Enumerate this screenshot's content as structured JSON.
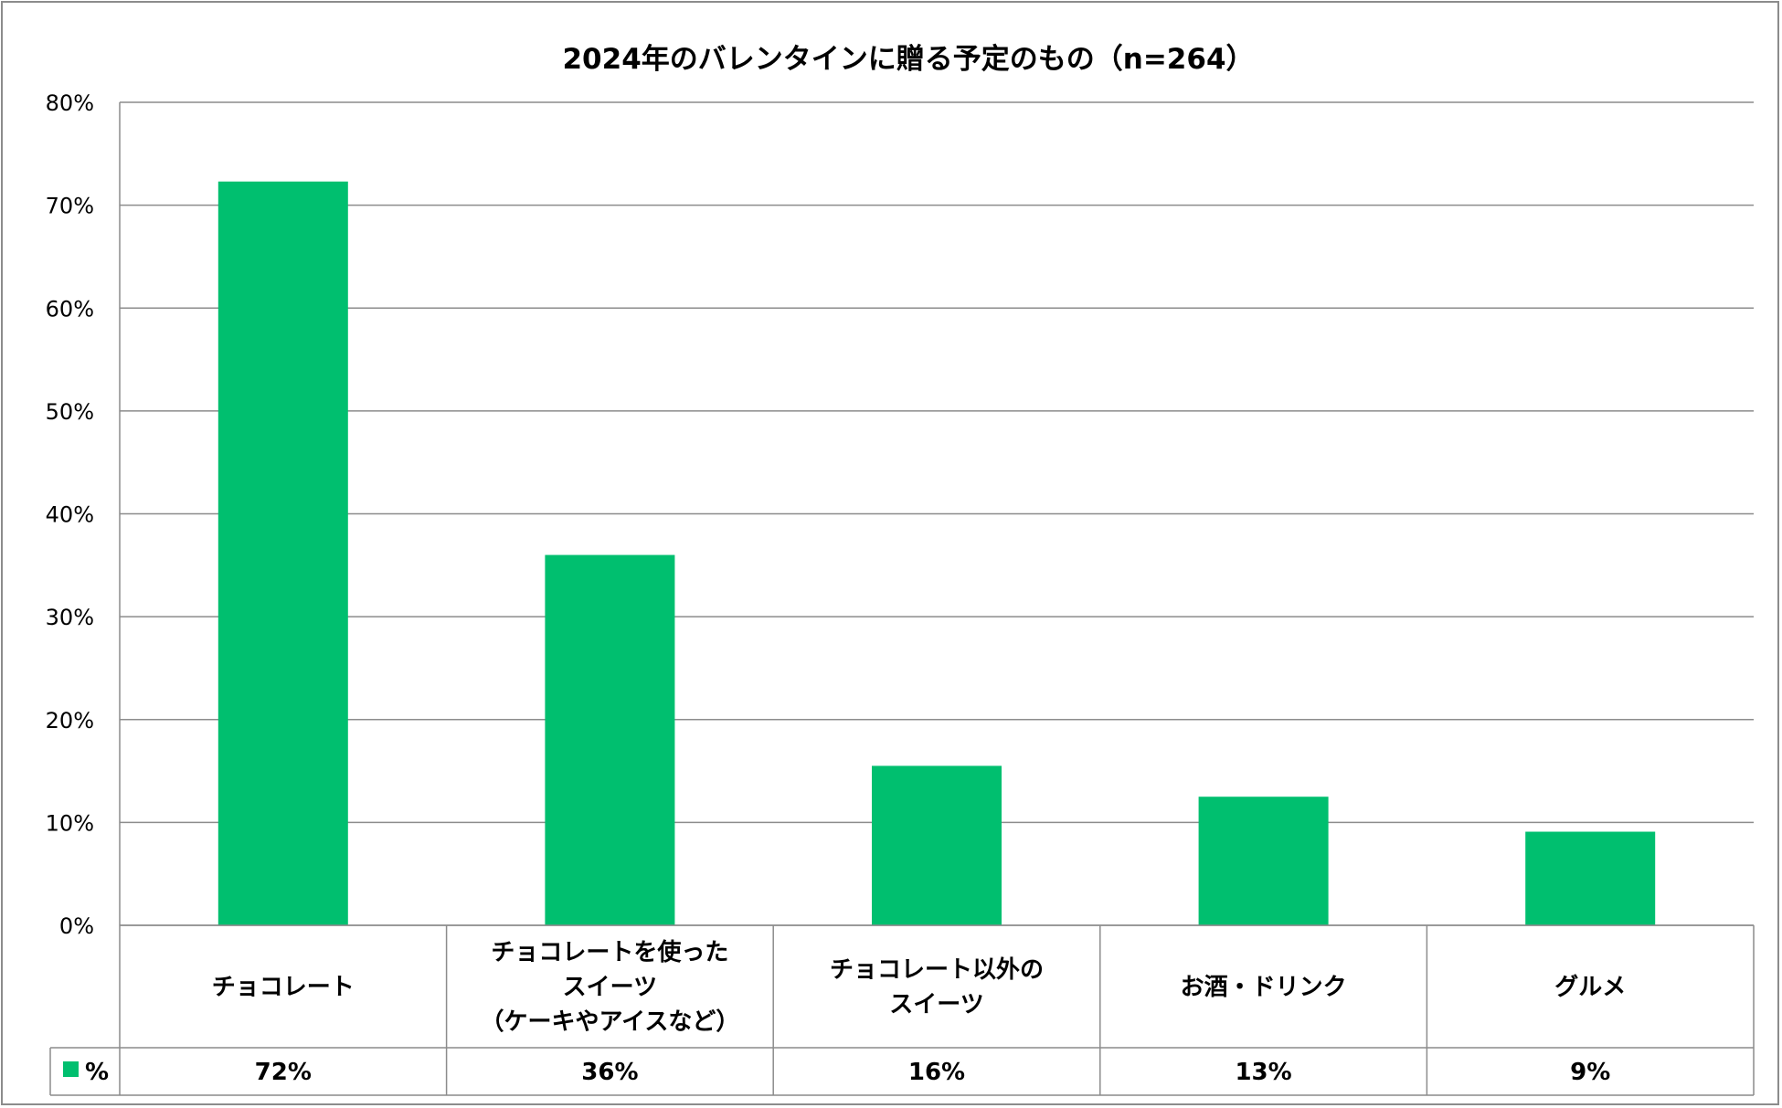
{
  "chart_data": {
    "type": "bar",
    "title": "2024年のバレンタインに贈る予定のもの（n=264）",
    "categories": [
      [
        "チョコレート"
      ],
      [
        "チョコレートを使った",
        "スイーツ",
        "（ケーキやアイスなど）"
      ],
      [
        "チョコレート以外の",
        "スイーツ"
      ],
      [
        "お酒・ドリンク"
      ],
      [
        "グルメ"
      ]
    ],
    "series": [
      {
        "name": "%",
        "values": [
          72.3,
          36.0,
          15.5,
          12.5,
          9.1
        ],
        "labels": [
          "72%",
          "36%",
          "16%",
          "13%",
          "9%"
        ],
        "color": "#00bf6f"
      }
    ],
    "ylim": [
      0,
      80
    ],
    "yticks": [
      0,
      10,
      20,
      30,
      40,
      50,
      60,
      70,
      80
    ],
    "ytick_labels": [
      "0%",
      "10%",
      "20%",
      "30%",
      "40%",
      "50%",
      "60%",
      "70%",
      "80%"
    ],
    "grid": true,
    "data_table": true,
    "legend_position": "data-table"
  },
  "colors": {
    "bar": "#00bf6f",
    "gridline": "#8c8c8c",
    "axis": "#8c8c8c"
  }
}
